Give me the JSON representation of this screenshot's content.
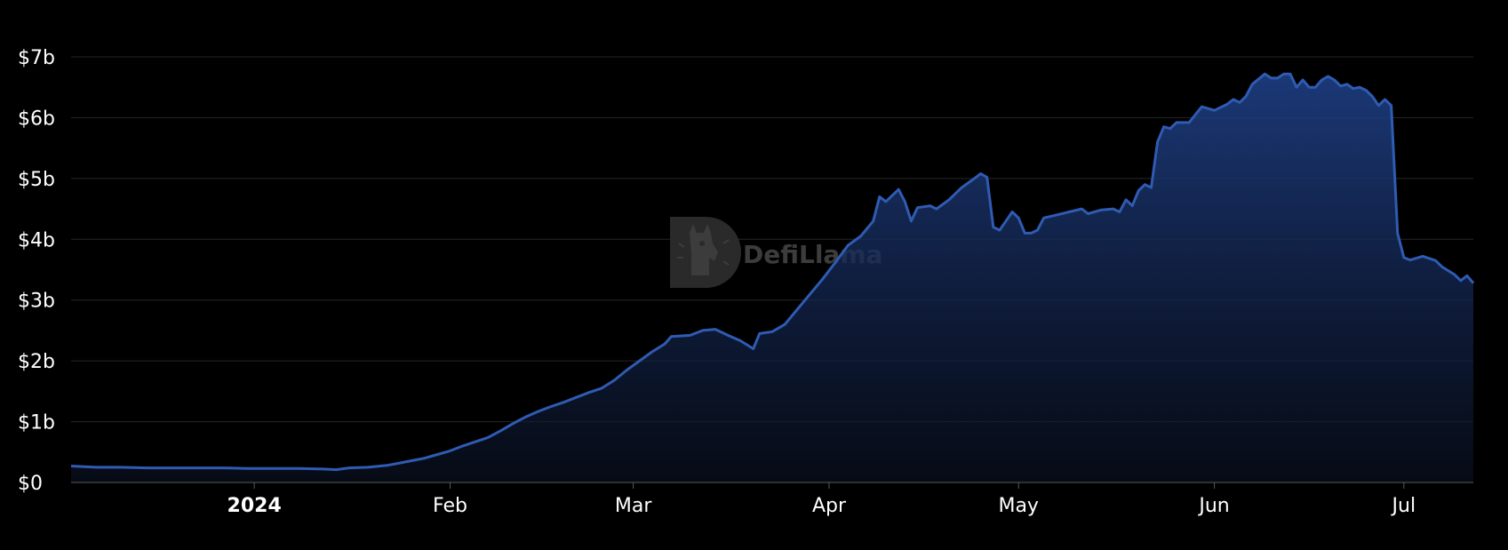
{
  "watermark": {
    "text": "DefiLlama",
    "icon": "llama-logo-icon"
  },
  "colors": {
    "background": "#000000",
    "line": "#2f5bb3",
    "area_top": "#1e3f85",
    "grid": "#262626",
    "text": "#ffffff"
  },
  "chart_data": {
    "type": "area",
    "title": "",
    "xlabel": "",
    "ylabel": "",
    "ylim": [
      0,
      7
    ],
    "xlim": [
      "2023-12-03",
      "2024-07-12"
    ],
    "grid": true,
    "y_ticks": [
      {
        "value": 0,
        "label": "$0"
      },
      {
        "value": 1,
        "label": "$1b"
      },
      {
        "value": 2,
        "label": "$2b"
      },
      {
        "value": 3,
        "label": "$3b"
      },
      {
        "value": 4,
        "label": "$4b"
      },
      {
        "value": 5,
        "label": "$5b"
      },
      {
        "value": 6,
        "label": "$6b"
      },
      {
        "value": 7,
        "label": "$7b"
      }
    ],
    "x_ticks": [
      {
        "date": "2024-01-01",
        "label": "2024",
        "bold": true
      },
      {
        "date": "2024-02-01",
        "label": "Feb",
        "bold": false
      },
      {
        "date": "2024-03-01",
        "label": "Mar",
        "bold": false
      },
      {
        "date": "2024-04-01",
        "label": "Apr",
        "bold": false
      },
      {
        "date": "2024-05-01",
        "label": "May",
        "bold": false
      },
      {
        "date": "2024-06-01",
        "label": "Jun",
        "bold": false
      },
      {
        "date": "2024-07-01",
        "label": "Jul",
        "bold": false
      }
    ],
    "series": [
      {
        "unit": "$b",
        "points": [
          [
            "2023-12-03",
            0.27
          ],
          [
            "2023-12-07",
            0.25
          ],
          [
            "2023-12-11",
            0.25
          ],
          [
            "2023-12-15",
            0.24
          ],
          [
            "2023-12-19",
            0.24
          ],
          [
            "2023-12-23",
            0.24
          ],
          [
            "2023-12-27",
            0.24
          ],
          [
            "2023-12-31",
            0.23
          ],
          [
            "2024-01-04",
            0.23
          ],
          [
            "2024-01-08",
            0.23
          ],
          [
            "2024-01-12",
            0.22
          ],
          [
            "2024-01-14",
            0.21
          ],
          [
            "2024-01-16",
            0.24
          ],
          [
            "2024-01-19",
            0.25
          ],
          [
            "2024-01-22",
            0.28
          ],
          [
            "2024-01-24",
            0.32
          ],
          [
            "2024-01-26",
            0.36
          ],
          [
            "2024-01-28",
            0.4
          ],
          [
            "2024-01-30",
            0.46
          ],
          [
            "2024-02-01",
            0.52
          ],
          [
            "2024-02-03",
            0.6
          ],
          [
            "2024-02-05",
            0.67
          ],
          [
            "2024-02-07",
            0.74
          ],
          [
            "2024-02-09",
            0.85
          ],
          [
            "2024-02-11",
            0.97
          ],
          [
            "2024-02-13",
            1.08
          ],
          [
            "2024-02-15",
            1.17
          ],
          [
            "2024-02-17",
            1.25
          ],
          [
            "2024-02-19",
            1.32
          ],
          [
            "2024-02-21",
            1.4
          ],
          [
            "2024-02-23",
            1.48
          ],
          [
            "2024-02-25",
            1.55
          ],
          [
            "2024-02-27",
            1.68
          ],
          [
            "2024-02-29",
            1.85
          ],
          [
            "2024-03-02",
            2.0
          ],
          [
            "2024-03-04",
            2.15
          ],
          [
            "2024-03-06",
            2.28
          ],
          [
            "2024-03-07",
            2.4
          ],
          [
            "2024-03-10",
            2.42
          ],
          [
            "2024-03-12",
            2.5
          ],
          [
            "2024-03-14",
            2.52
          ],
          [
            "2024-03-16",
            2.42
          ],
          [
            "2024-03-18",
            2.33
          ],
          [
            "2024-03-20",
            2.2
          ],
          [
            "2024-03-21",
            2.45
          ],
          [
            "2024-03-23",
            2.48
          ],
          [
            "2024-03-25",
            2.6
          ],
          [
            "2024-03-27",
            2.85
          ],
          [
            "2024-03-29",
            3.1
          ],
          [
            "2024-03-31",
            3.35
          ],
          [
            "2024-04-02",
            3.62
          ],
          [
            "2024-04-04",
            3.9
          ],
          [
            "2024-04-06",
            4.05
          ],
          [
            "2024-04-08",
            4.3
          ],
          [
            "2024-04-09",
            4.7
          ],
          [
            "2024-04-10",
            4.62
          ],
          [
            "2024-04-12",
            4.82
          ],
          [
            "2024-04-13",
            4.62
          ],
          [
            "2024-04-14",
            4.3
          ],
          [
            "2024-04-15",
            4.52
          ],
          [
            "2024-04-17",
            4.55
          ],
          [
            "2024-04-18",
            4.5
          ],
          [
            "2024-04-20",
            4.65
          ],
          [
            "2024-04-22",
            4.85
          ],
          [
            "2024-04-24",
            5.0
          ],
          [
            "2024-04-25",
            5.08
          ],
          [
            "2024-04-26",
            5.02
          ],
          [
            "2024-04-27",
            4.2
          ],
          [
            "2024-04-28",
            4.15
          ],
          [
            "2024-04-29",
            4.3
          ],
          [
            "2024-04-30",
            4.45
          ],
          [
            "2024-05-01",
            4.35
          ],
          [
            "2024-05-02",
            4.1
          ],
          [
            "2024-05-03",
            4.1
          ],
          [
            "2024-05-04",
            4.15
          ],
          [
            "2024-05-05",
            4.35
          ],
          [
            "2024-05-07",
            4.4
          ],
          [
            "2024-05-09",
            4.45
          ],
          [
            "2024-05-11",
            4.5
          ],
          [
            "2024-05-12",
            4.42
          ],
          [
            "2024-05-14",
            4.48
          ],
          [
            "2024-05-16",
            4.5
          ],
          [
            "2024-05-17",
            4.45
          ],
          [
            "2024-05-18",
            4.65
          ],
          [
            "2024-05-19",
            4.55
          ],
          [
            "2024-05-20",
            4.8
          ],
          [
            "2024-05-21",
            4.9
          ],
          [
            "2024-05-22",
            4.85
          ],
          [
            "2024-05-23",
            5.6
          ],
          [
            "2024-05-24",
            5.85
          ],
          [
            "2024-05-25",
            5.82
          ],
          [
            "2024-05-26",
            5.92
          ],
          [
            "2024-05-28",
            5.92
          ],
          [
            "2024-05-29",
            6.05
          ],
          [
            "2024-05-30",
            6.18
          ],
          [
            "2024-06-01",
            6.12
          ],
          [
            "2024-06-03",
            6.22
          ],
          [
            "2024-06-04",
            6.3
          ],
          [
            "2024-06-05",
            6.25
          ],
          [
            "2024-06-06",
            6.35
          ],
          [
            "2024-06-07",
            6.55
          ],
          [
            "2024-06-09",
            6.72
          ],
          [
            "2024-06-10",
            6.65
          ],
          [
            "2024-06-11",
            6.65
          ],
          [
            "2024-06-12",
            6.72
          ],
          [
            "2024-06-13",
            6.72
          ],
          [
            "2024-06-14",
            6.5
          ],
          [
            "2024-06-15",
            6.62
          ],
          [
            "2024-06-16",
            6.5
          ],
          [
            "2024-06-17",
            6.5
          ],
          [
            "2024-06-18",
            6.62
          ],
          [
            "2024-06-19",
            6.68
          ],
          [
            "2024-06-20",
            6.62
          ],
          [
            "2024-06-21",
            6.52
          ],
          [
            "2024-06-22",
            6.55
          ],
          [
            "2024-06-23",
            6.48
          ],
          [
            "2024-06-24",
            6.5
          ],
          [
            "2024-06-25",
            6.45
          ],
          [
            "2024-06-26",
            6.35
          ],
          [
            "2024-06-27",
            6.2
          ],
          [
            "2024-06-28",
            6.3
          ],
          [
            "2024-06-29",
            6.2
          ],
          [
            "2024-06-30",
            4.1
          ],
          [
            "2024-07-01",
            3.7
          ],
          [
            "2024-07-02",
            3.66
          ],
          [
            "2024-07-04",
            3.72
          ],
          [
            "2024-07-06",
            3.65
          ],
          [
            "2024-07-07",
            3.55
          ],
          [
            "2024-07-09",
            3.42
          ],
          [
            "2024-07-10",
            3.32
          ],
          [
            "2024-07-11",
            3.4
          ],
          [
            "2024-07-12",
            3.28
          ]
        ]
      }
    ]
  }
}
